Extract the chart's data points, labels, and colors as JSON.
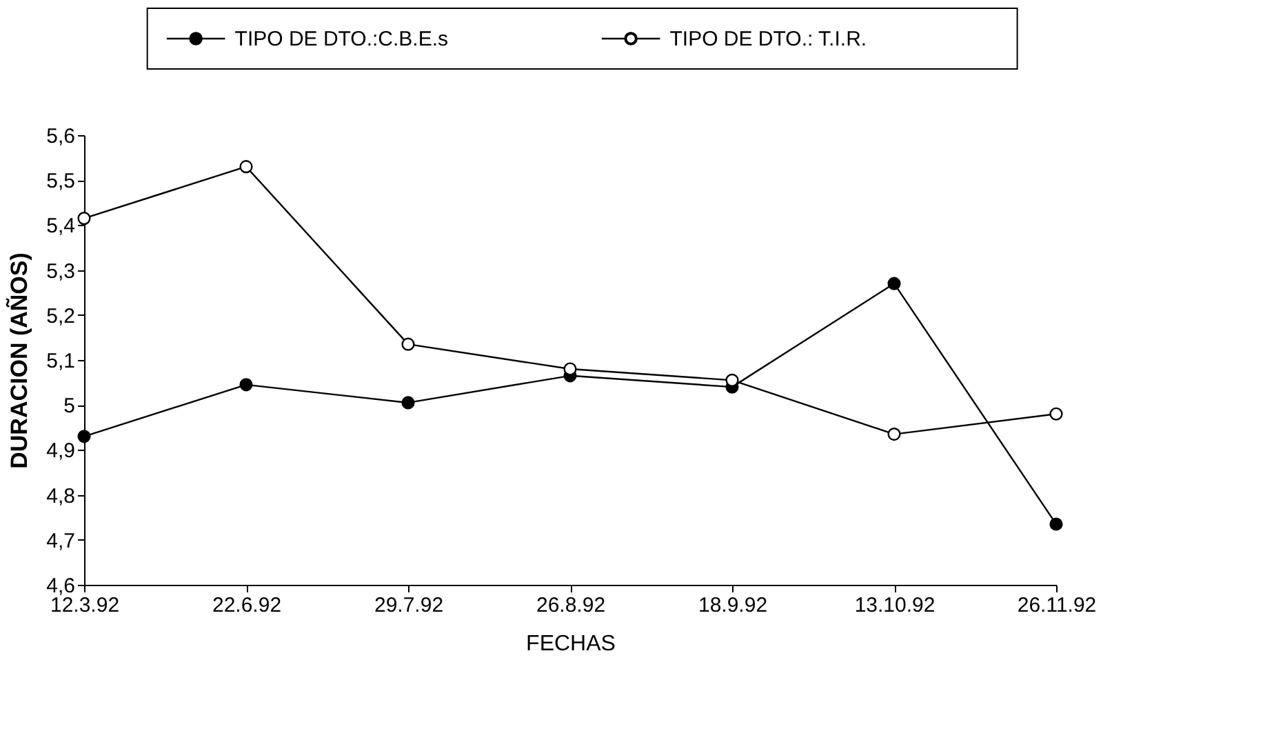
{
  "chart_data": {
    "type": "line",
    "xlabel": "FECHAS",
    "ylabel": "DURACION (AÑOS)",
    "categories": [
      "12.3.92",
      "22.6.92",
      "29.7.92",
      "26.8.92",
      "18.9.92",
      "13.10.92",
      "26.11.92"
    ],
    "series": [
      {
        "name": "TIPO DE DTO.:C.B.E.s",
        "color": "#000000",
        "values": [
          4.93,
          5.045,
          5.005,
          5.065,
          5.04,
          5.27,
          4.735
        ]
      },
      {
        "name": "TIPO DE DTO.: T.I.R.",
        "color": "#ffffff",
        "values": [
          5.415,
          5.53,
          5.135,
          5.08,
          5.055,
          4.935,
          4.98
        ]
      }
    ],
    "ylim": [
      4.6,
      5.6
    ],
    "yticks": [
      {
        "value": 4.6,
        "label": "4,6"
      },
      {
        "value": 4.7,
        "label": "4,7"
      },
      {
        "value": 4.8,
        "label": "4,8"
      },
      {
        "value": 4.9,
        "label": "4,9"
      },
      {
        "value": 5,
        "label": "5"
      },
      {
        "value": 5.1,
        "label": "5,1"
      },
      {
        "value": 5.2,
        "label": "5,2"
      },
      {
        "value": 5.3,
        "label": "5,3"
      },
      {
        "value": 5.4,
        "label": "5,4"
      },
      {
        "value": 5.5,
        "label": "5,5"
      },
      {
        "value": 5.6,
        "label": "5,6"
      }
    ],
    "grid": false,
    "legend": "top",
    "marker": "circle",
    "line_style": "solid"
  }
}
